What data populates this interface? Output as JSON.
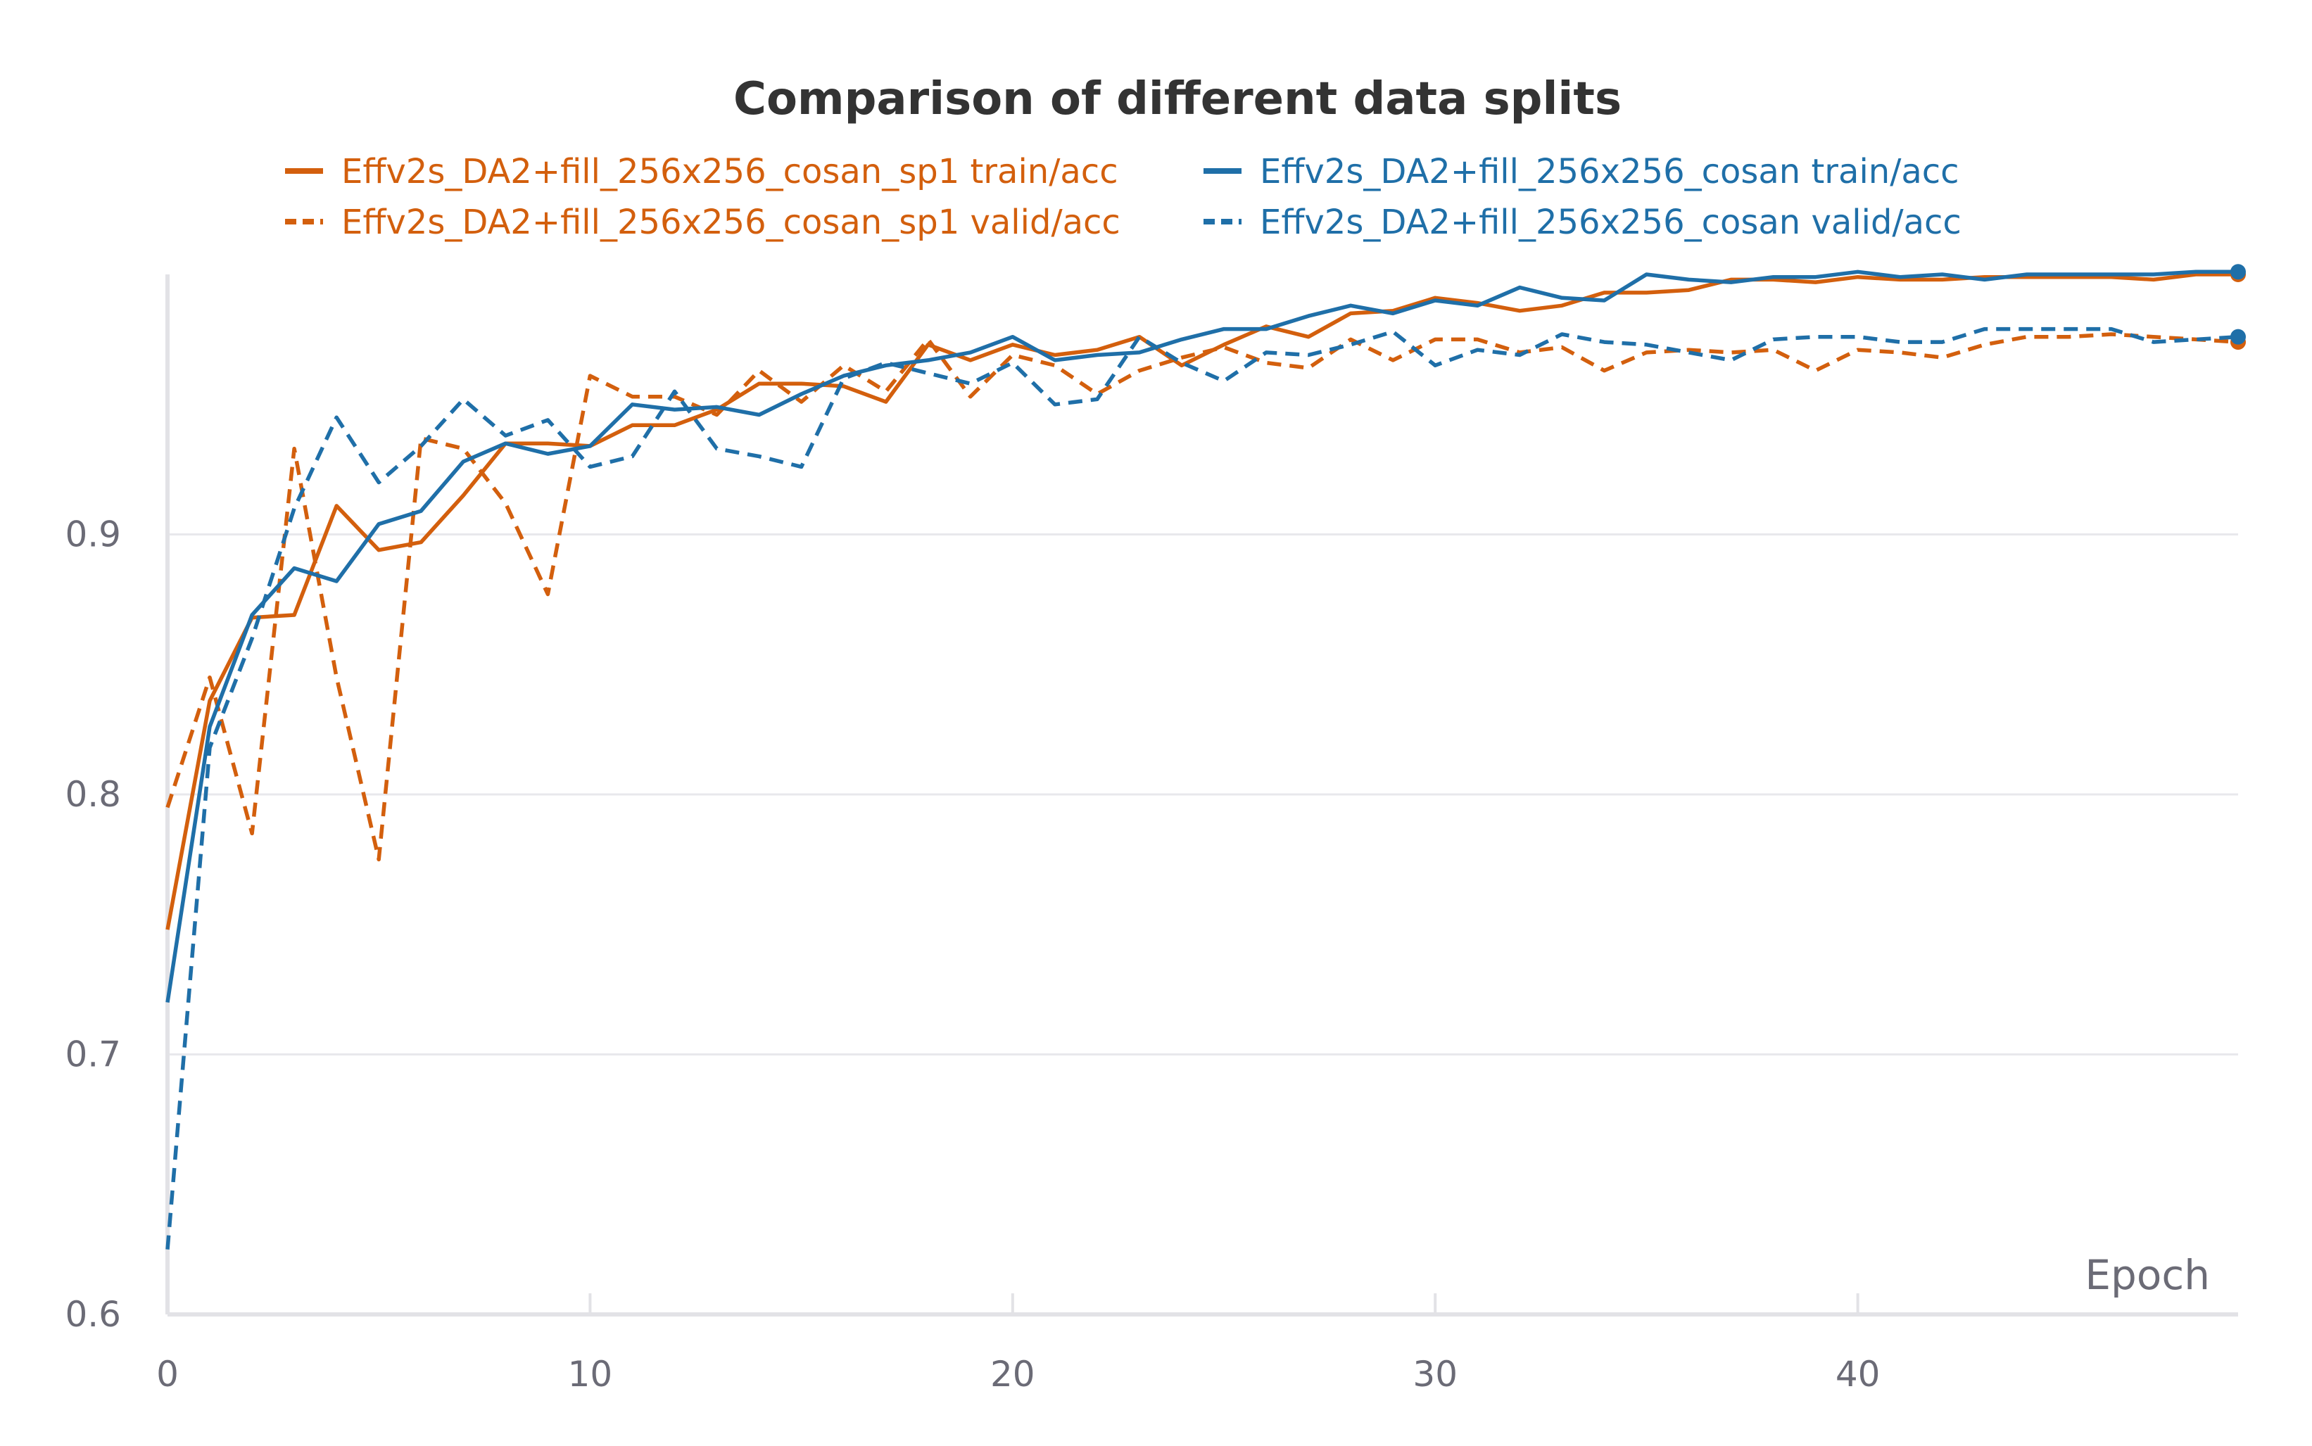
{
  "chart_data": {
    "type": "line",
    "title": "Comparison of different data splits",
    "xlabel": "Epoch",
    "ylabel": "",
    "xlim": [
      0,
      49
    ],
    "ylim": [
      0.6,
      1.0
    ],
    "x_ticks": [
      0,
      10,
      20,
      30,
      40
    ],
    "y_ticks": [
      0.6,
      0.7,
      0.8,
      0.9
    ],
    "grid": "horizontal",
    "legend_position": "top",
    "series": [
      {
        "name": "Effv2s_DA2+fill_256x256_cosan_sp1 train/acc",
        "color": "#d35f0d",
        "dash": "solid",
        "values": [
          0.748,
          0.836,
          0.868,
          0.869,
          0.911,
          0.894,
          0.897,
          0.915,
          0.935,
          0.935,
          0.934,
          0.942,
          0.942,
          0.948,
          0.958,
          0.958,
          0.957,
          0.951,
          0.973,
          0.967,
          0.973,
          0.969,
          0.971,
          0.976,
          0.965,
          0.973,
          0.98,
          0.976,
          0.985,
          0.986,
          0.991,
          0.989,
          0.986,
          0.988,
          0.993,
          0.993,
          0.994,
          0.998,
          0.998,
          0.997,
          0.999,
          0.998,
          0.998,
          0.999,
          0.999,
          0.999,
          0.999,
          0.998,
          1.0,
          1.0
        ]
      },
      {
        "name": "Effv2s_DA2+fill_256x256_cosan_sp1 valid/acc",
        "color": "#d35f0d",
        "dash": "dashed",
        "values": [
          0.795,
          0.845,
          0.785,
          0.933,
          0.845,
          0.775,
          0.937,
          0.933,
          0.912,
          0.877,
          0.961,
          0.953,
          0.953,
          0.946,
          0.963,
          0.951,
          0.965,
          0.955,
          0.975,
          0.953,
          0.969,
          0.965,
          0.954,
          0.963,
          0.968,
          0.972,
          0.966,
          0.964,
          0.975,
          0.967,
          0.975,
          0.975,
          0.97,
          0.972,
          0.963,
          0.97,
          0.971,
          0.97,
          0.971,
          0.963,
          0.971,
          0.97,
          0.968,
          0.973,
          0.976,
          0.976,
          0.977,
          0.976,
          0.975,
          0.974
        ]
      },
      {
        "name": "Effv2s_DA2+fill_256x256_cosan train/acc",
        "color": "#1f6fa8",
        "dash": "solid",
        "values": [
          0.72,
          0.826,
          0.869,
          0.887,
          0.882,
          0.904,
          0.909,
          0.928,
          0.935,
          0.931,
          0.934,
          0.95,
          0.948,
          0.949,
          0.946,
          0.954,
          0.961,
          0.965,
          0.967,
          0.97,
          0.976,
          0.967,
          0.969,
          0.97,
          0.975,
          0.979,
          0.979,
          0.984,
          0.988,
          0.985,
          0.99,
          0.988,
          0.995,
          0.991,
          0.99,
          1.0,
          0.998,
          0.997,
          0.999,
          0.999,
          1.001,
          0.999,
          1.0,
          0.998,
          1.0,
          1.0,
          1.0,
          1.0,
          1.001,
          1.001
        ]
      },
      {
        "name": "Effv2s_DA2+fill_256x256_cosan valid/acc",
        "color": "#1f6fa8",
        "dash": "dashed",
        "values": [
          0.625,
          0.818,
          0.86,
          0.91,
          0.945,
          0.92,
          0.934,
          0.952,
          0.938,
          0.944,
          0.926,
          0.93,
          0.955,
          0.933,
          0.93,
          0.926,
          0.96,
          0.966,
          0.962,
          0.958,
          0.966,
          0.95,
          0.952,
          0.976,
          0.966,
          0.959,
          0.97,
          0.969,
          0.973,
          0.978,
          0.965,
          0.971,
          0.969,
          0.977,
          0.974,
          0.973,
          0.97,
          0.967,
          0.975,
          0.976,
          0.976,
          0.974,
          0.974,
          0.979,
          0.979,
          0.979,
          0.979,
          0.974,
          0.975,
          0.976
        ]
      }
    ]
  }
}
